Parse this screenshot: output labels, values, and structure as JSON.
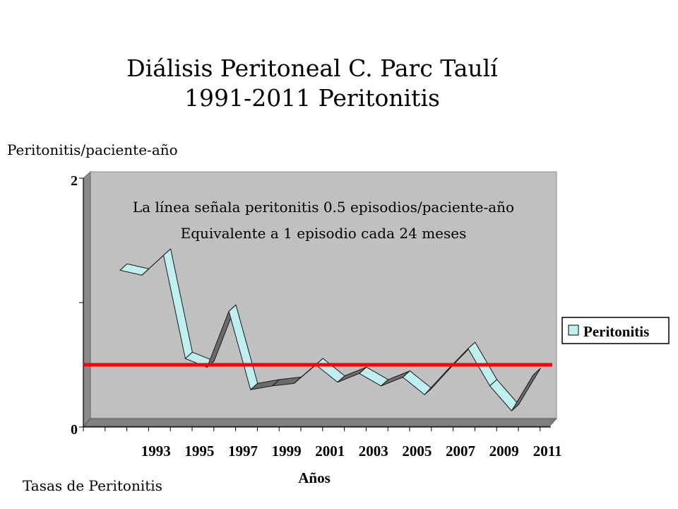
{
  "page": {
    "title_line1": "Diálisis Peritoneal C. Parc Taulí",
    "title_line2": "1991-2011  Peritonitis",
    "y_axis_caption": "Peritonitis/paciente-año",
    "footer": "Tasas de Peritonitis"
  },
  "chart_data": {
    "type": "line",
    "style": "3d-ribbon",
    "xlabel": "Años",
    "ylabel": "Peritonitis/paciente-año",
    "x": [
      1992,
      1993,
      1994,
      1995,
      1996,
      1997,
      1998,
      1999,
      2000,
      2001,
      2002,
      2003,
      2004,
      2005,
      2006,
      2007,
      2008,
      2009,
      2010,
      2011
    ],
    "x_tick_labels": [
      "1993",
      "1995",
      "1997",
      "1999",
      "2001",
      "2003",
      "2005",
      "2007",
      "2009",
      "2011"
    ],
    "y_tick_labels": [
      "0",
      "2"
    ],
    "ylim": [
      0,
      2
    ],
    "series": [
      {
        "name": "Peritonitis",
        "values": [
          1.26,
          1.22,
          1.38,
          0.55,
          0.48,
          0.93,
          0.3,
          0.33,
          0.35,
          0.5,
          0.36,
          0.43,
          0.33,
          0.4,
          0.26,
          0.45,
          0.63,
          0.33,
          0.13,
          0.42
        ],
        "fill_color": "#bfeff0",
        "stroke_color": "#1a1a1a",
        "shade_color": "#6b6b6b"
      }
    ],
    "reference_line": {
      "value": 0.5,
      "color": "#ff0000"
    },
    "annotation_line1": "La línea señala peritonitis 0.5 episodios/paciente-año",
    "annotation_line2": "Equivalente a 1 episodio cada 24 meses",
    "legend": {
      "position": "right",
      "label": "Peritonitis"
    },
    "plot_background": "#c0c0c0",
    "grid": false
  }
}
